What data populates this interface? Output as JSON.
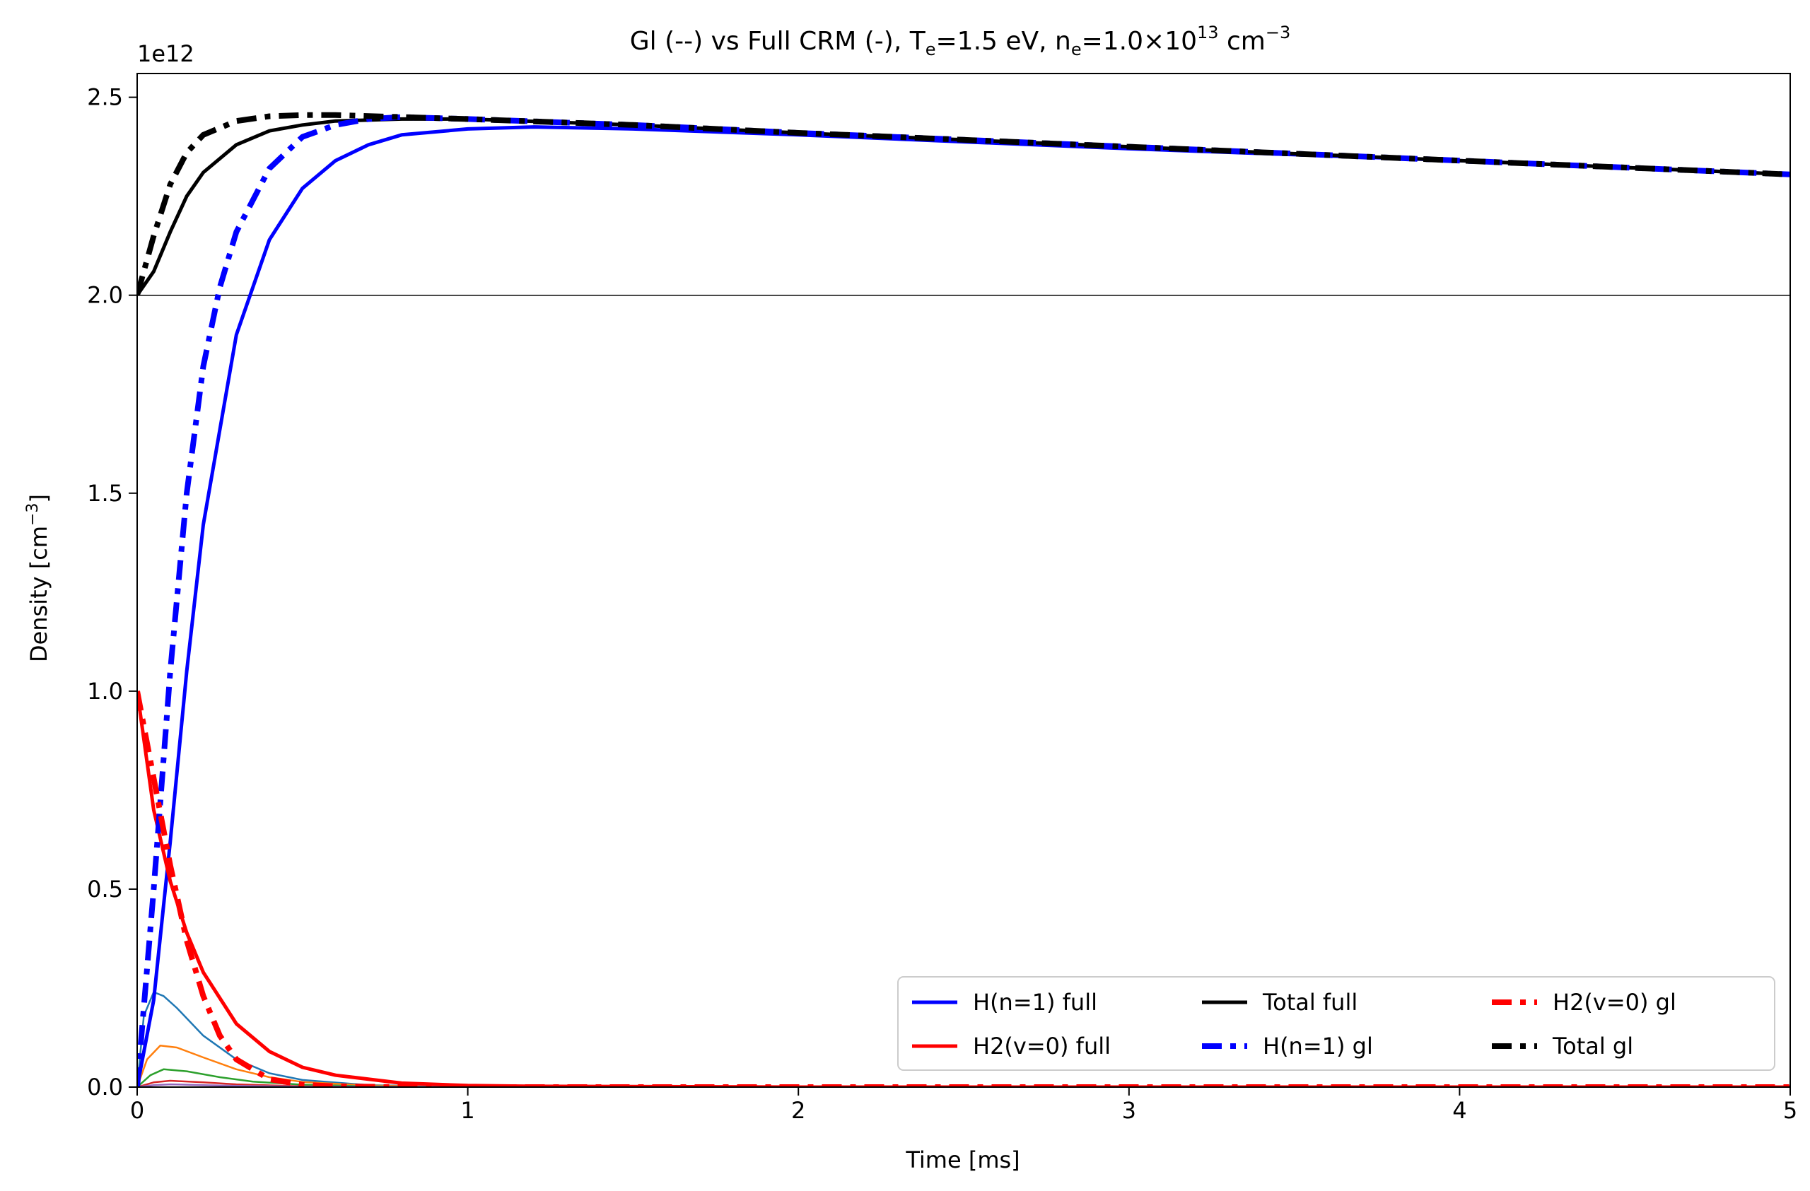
{
  "chart_data": {
    "type": "line",
    "title": {
      "prefix": "Gl (--) vs Full CRM (-),  T",
      "sub_e1": "e",
      "mid1": "=1.5 eV, n",
      "sub_e2": "e",
      "mid2": "=1.0×10",
      "sup13": "13",
      "mid3": " cm",
      "supm3": "−3"
    },
    "xlabel": "Time [ms]",
    "ylabel": {
      "main": "Density [cm",
      "sup": "−3",
      "close": "]"
    },
    "y_offset_label": "1e12",
    "xlim": [
      0,
      5
    ],
    "ylim": [
      0,
      2.56
    ],
    "x_ticks": [
      0,
      1,
      2,
      3,
      4,
      5
    ],
    "x_tick_labels": [
      "0",
      "1",
      "2",
      "3",
      "4",
      "5"
    ],
    "y_ticks": [
      0.0,
      0.5,
      1.0,
      1.5,
      2.0,
      2.5
    ],
    "y_tick_labels": [
      "0.0",
      "0.5",
      "1.0",
      "1.5",
      "2.0",
      "2.5"
    ],
    "reference_line_y": 2.0,
    "grid": false,
    "legend_position": "lower right",
    "legend": [
      {
        "label": "H(n=1) full",
        "color": "#0000ff",
        "style": "solid",
        "width": "thin"
      },
      {
        "label": "Total full",
        "color": "#000000",
        "style": "solid",
        "width": "thin"
      },
      {
        "label": "H2(v=0) gl",
        "color": "#ff0000",
        "style": "dashdot",
        "width": "thick"
      },
      {
        "label": "H2(v=0) full",
        "color": "#ff0000",
        "style": "solid",
        "width": "thin"
      },
      {
        "label": "H(n=1) gl",
        "color": "#0000ff",
        "style": "dashdot",
        "width": "thick"
      },
      {
        "label": "Total gl",
        "color": "#000000",
        "style": "dashdot",
        "width": "thick"
      }
    ],
    "series": [
      {
        "name": "H(n=1) full",
        "color": "#0000ff",
        "style": "solid",
        "width": "thin",
        "x": [
          0,
          0.05,
          0.1,
          0.15,
          0.2,
          0.3,
          0.4,
          0.5,
          0.6,
          0.7,
          0.8,
          1.0,
          1.2,
          1.5,
          2,
          3,
          4,
          5
        ],
        "y": [
          0,
          0.22,
          0.62,
          1.05,
          1.42,
          1.9,
          2.14,
          2.27,
          2.34,
          2.38,
          2.405,
          2.42,
          2.425,
          2.42,
          2.405,
          2.37,
          2.34,
          2.305
        ]
      },
      {
        "name": "H2(v=0) full",
        "color": "#ff0000",
        "style": "solid",
        "width": "thin",
        "x": [
          0,
          0.05,
          0.1,
          0.15,
          0.2,
          0.3,
          0.4,
          0.5,
          0.6,
          0.8,
          1.0,
          1.2,
          2,
          5
        ],
        "y": [
          1.0,
          0.7,
          0.52,
          0.39,
          0.29,
          0.16,
          0.09,
          0.05,
          0.03,
          0.01,
          0.004,
          0.002,
          0.0,
          0.0
        ]
      },
      {
        "name": "Total full",
        "color": "#000000",
        "style": "solid",
        "width": "thin",
        "x": [
          0,
          0.05,
          0.1,
          0.15,
          0.2,
          0.3,
          0.4,
          0.5,
          0.6,
          0.8,
          1.0,
          1.5,
          2,
          3,
          4,
          5
        ],
        "y": [
          2.0,
          2.06,
          2.16,
          2.25,
          2.31,
          2.38,
          2.415,
          2.43,
          2.44,
          2.445,
          2.445,
          2.43,
          2.41,
          2.375,
          2.34,
          2.305
        ]
      },
      {
        "name": "H(n=1) gl",
        "color": "#0000ff",
        "style": "dashdot",
        "width": "thick",
        "x": [
          0,
          0.05,
          0.1,
          0.15,
          0.2,
          0.25,
          0.3,
          0.4,
          0.5,
          0.6,
          0.7,
          0.8,
          1.0,
          1.5,
          2,
          3,
          4,
          5
        ],
        "y": [
          0,
          0.5,
          1.05,
          1.5,
          1.82,
          2.02,
          2.16,
          2.32,
          2.4,
          2.43,
          2.445,
          2.45,
          2.445,
          2.43,
          2.41,
          2.375,
          2.34,
          2.305
        ]
      },
      {
        "name": "H2(v=0) gl",
        "color": "#ff0000",
        "style": "dashdot",
        "width": "thick",
        "x": [
          0,
          0.05,
          0.1,
          0.15,
          0.2,
          0.25,
          0.3,
          0.4,
          0.5,
          0.6,
          0.8,
          1.0,
          5
        ],
        "y": [
          1.0,
          0.78,
          0.56,
          0.37,
          0.23,
          0.13,
          0.07,
          0.02,
          0.006,
          0.002,
          0.0,
          0.0,
          0.0
        ]
      },
      {
        "name": "Total gl",
        "color": "#000000",
        "style": "dashdot",
        "width": "thick",
        "x": [
          0,
          0.05,
          0.1,
          0.15,
          0.2,
          0.3,
          0.4,
          0.5,
          0.6,
          0.8,
          1.0,
          1.5,
          2,
          3,
          4,
          5
        ],
        "y": [
          2.0,
          2.15,
          2.28,
          2.36,
          2.405,
          2.44,
          2.452,
          2.455,
          2.455,
          2.45,
          2.445,
          2.43,
          2.41,
          2.375,
          2.34,
          2.305
        ]
      },
      {
        "color": "#1f77b4",
        "style": "solid",
        "width": "hair",
        "x": [
          0,
          0.02,
          0.05,
          0.08,
          0.12,
          0.2,
          0.3,
          0.4,
          0.5,
          0.7,
          1.0,
          1.5,
          5
        ],
        "y": [
          0,
          0.18,
          0.24,
          0.23,
          0.2,
          0.13,
          0.07,
          0.035,
          0.018,
          0.005,
          0.001,
          0.0,
          0.0
        ]
      },
      {
        "color": "#ff7f0e",
        "style": "solid",
        "width": "hair",
        "x": [
          0,
          0.03,
          0.07,
          0.12,
          0.2,
          0.3,
          0.4,
          0.5,
          0.7,
          1.0,
          5
        ],
        "y": [
          0,
          0.07,
          0.105,
          0.1,
          0.075,
          0.045,
          0.025,
          0.013,
          0.004,
          0.001,
          0.0
        ]
      },
      {
        "color": "#2ca02c",
        "style": "solid",
        "width": "hair",
        "x": [
          0,
          0.04,
          0.08,
          0.15,
          0.25,
          0.35,
          0.5,
          0.7,
          1.0,
          5
        ],
        "y": [
          0,
          0.03,
          0.045,
          0.04,
          0.025,
          0.014,
          0.006,
          0.002,
          0.0,
          0.0
        ]
      },
      {
        "color": "#d62728",
        "style": "solid",
        "width": "hair",
        "x": [
          0,
          0.05,
          0.1,
          0.2,
          0.3,
          0.5,
          0.8,
          5
        ],
        "y": [
          0,
          0.012,
          0.016,
          0.012,
          0.007,
          0.002,
          0.0,
          0.0
        ]
      },
      {
        "color": "#9467bd",
        "style": "solid",
        "width": "hair",
        "x": [
          0,
          0.05,
          0.1,
          0.2,
          0.3,
          0.5,
          5
        ],
        "y": [
          0,
          0.005,
          0.007,
          0.005,
          0.003,
          0.001,
          0.0
        ]
      }
    ]
  }
}
